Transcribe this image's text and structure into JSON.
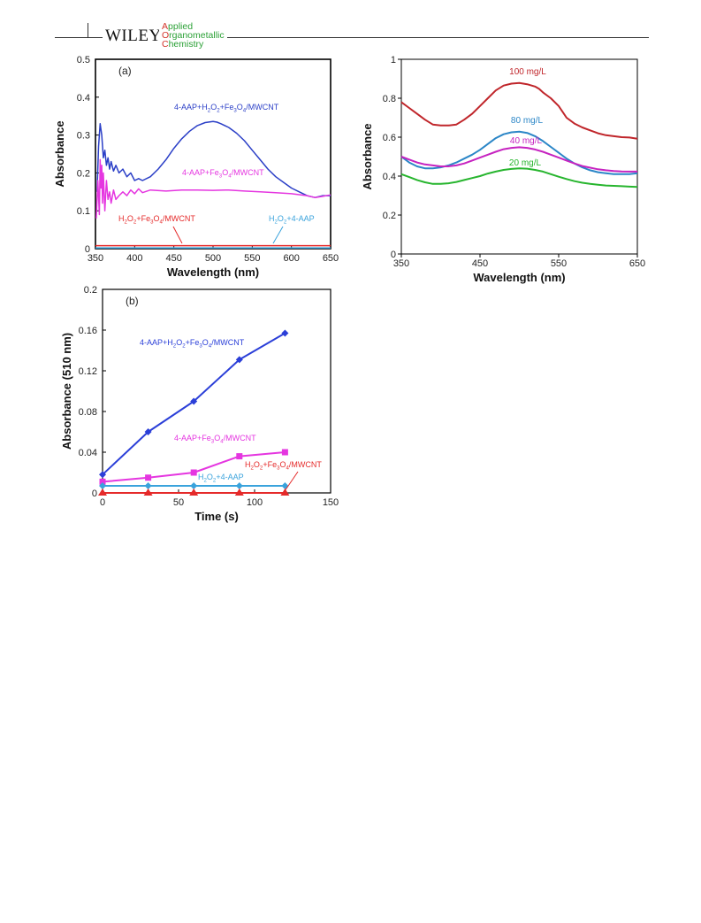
{
  "header": {
    "publisher": "WILEY",
    "journal_lines": [
      {
        "first": "A",
        "rest": "pplied"
      },
      {
        "first": "O",
        "rest": "rganometallic"
      },
      {
        "first": "C",
        "rest": "hemistry"
      }
    ],
    "colors": {
      "rule": "#333333",
      "journal_text": "#2aa035",
      "journal_initial": "#d3342a"
    }
  },
  "chart_data": [
    {
      "id": "a",
      "type": "line",
      "panel_label": "(a)",
      "xlabel": "Wavelength (nm)",
      "ylabel": "Absorbance",
      "xlim": [
        350,
        650
      ],
      "ylim": [
        0,
        0.5
      ],
      "xticks": [
        "350",
        "400",
        "450",
        "500",
        "550",
        "600",
        "650"
      ],
      "yticks": [
        "0",
        "0.1",
        "0.2",
        "0.3",
        "0.4",
        "0.5"
      ],
      "series": [
        {
          "name": "4-AAP+H2O2+Fe3O4/MWCNT",
          "color": "#2b3fc7",
          "x": [
            352,
            354,
            356,
            358,
            360,
            362,
            364,
            366,
            368,
            370,
            373,
            376,
            380,
            385,
            390,
            395,
            400,
            405,
            410,
            420,
            430,
            440,
            450,
            460,
            470,
            480,
            490,
            500,
            505,
            510,
            520,
            530,
            540,
            550,
            560,
            570,
            580,
            590,
            600,
            610,
            620,
            630,
            640,
            650
          ],
          "y": [
            0.15,
            0.27,
            0.33,
            0.3,
            0.24,
            0.26,
            0.22,
            0.24,
            0.21,
            0.23,
            0.205,
            0.22,
            0.2,
            0.21,
            0.19,
            0.2,
            0.18,
            0.185,
            0.18,
            0.19,
            0.21,
            0.235,
            0.265,
            0.29,
            0.31,
            0.325,
            0.333,
            0.336,
            0.334,
            0.33,
            0.32,
            0.305,
            0.285,
            0.26,
            0.235,
            0.21,
            0.19,
            0.175,
            0.16,
            0.15,
            0.14,
            0.135,
            0.14,
            0.14
          ]
        },
        {
          "name": "4-AAP+Fe3O4/MWCNT",
          "color": "#e536e0",
          "x": [
            351,
            353,
            355,
            356,
            357,
            358,
            359,
            360,
            362,
            364,
            366,
            368,
            370,
            373,
            376,
            380,
            385,
            390,
            395,
            400,
            405,
            410,
            420,
            440,
            460,
            480,
            500,
            520,
            540,
            560,
            580,
            600,
            620,
            630,
            640,
            650
          ],
          "y": [
            0.08,
            0.18,
            0.09,
            0.235,
            0.16,
            0.22,
            0.12,
            0.2,
            0.1,
            0.18,
            0.13,
            0.15,
            0.12,
            0.155,
            0.13,
            0.14,
            0.15,
            0.14,
            0.155,
            0.145,
            0.158,
            0.148,
            0.155,
            0.152,
            0.155,
            0.155,
            0.154,
            0.155,
            0.152,
            0.15,
            0.148,
            0.145,
            0.14,
            0.135,
            0.138,
            0.142
          ]
        },
        {
          "name": "H2O2+Fe3O4/MWCNT",
          "color": "#e52a2a",
          "x": [
            350,
            650
          ],
          "y": [
            0.008,
            0.008
          ]
        },
        {
          "name": "H2O2+4-AAP",
          "color": "#3aa3dc",
          "x": [
            350,
            650
          ],
          "y": [
            0.002,
            0.002
          ]
        }
      ],
      "annotations": [
        {
          "parts": [
            "4-AAP+H",
            "2",
            "O",
            "2",
            "+Fe",
            "3",
            "O",
            "4",
            "/MWCNT"
          ],
          "color": "#2b3fc7"
        },
        {
          "parts": [
            "4-AAP+Fe",
            "3",
            "O",
            "4",
            "/MWCNT"
          ],
          "color": "#e536e0"
        },
        {
          "parts": [
            "H",
            "2",
            "O",
            "2",
            "+Fe",
            "3",
            "O",
            "4",
            "/MWCNT"
          ],
          "color": "#e52a2a"
        },
        {
          "parts": [
            "H",
            "2",
            "O",
            "2",
            "+4-AAP"
          ],
          "color": "#3aa3dc"
        }
      ]
    },
    {
      "id": "right",
      "type": "line",
      "xlabel": "Wavelength (nm)",
      "ylabel": "Absorbance",
      "xlim": [
        350,
        650
      ],
      "ylim": [
        0,
        1
      ],
      "xticks": [
        "350",
        "450",
        "550",
        "650"
      ],
      "yticks": [
        "0",
        "0.2",
        "0.4",
        "0.6",
        "0.8",
        "1"
      ],
      "series": [
        {
          "name": "100 mg/L",
          "color": "#c0262b",
          "x": [
            350,
            360,
            370,
            380,
            390,
            400,
            410,
            420,
            430,
            440,
            450,
            460,
            470,
            480,
            490,
            500,
            510,
            520,
            525,
            530,
            540,
            550,
            560,
            570,
            580,
            590,
            600,
            610,
            620,
            630,
            640,
            650
          ],
          "y": [
            0.78,
            0.75,
            0.72,
            0.69,
            0.665,
            0.66,
            0.66,
            0.665,
            0.69,
            0.72,
            0.76,
            0.8,
            0.84,
            0.865,
            0.875,
            0.878,
            0.872,
            0.86,
            0.848,
            0.83,
            0.8,
            0.76,
            0.7,
            0.67,
            0.65,
            0.635,
            0.62,
            0.61,
            0.605,
            0.6,
            0.598,
            0.592
          ]
        },
        {
          "name": "80 mg/L",
          "color": "#2b86c7",
          "x": [
            350,
            360,
            370,
            380,
            390,
            400,
            410,
            420,
            430,
            440,
            450,
            460,
            470,
            480,
            490,
            500,
            510,
            520,
            530,
            540,
            550,
            560,
            570,
            580,
            590,
            600,
            610,
            620,
            630,
            640,
            650
          ],
          "y": [
            0.5,
            0.47,
            0.45,
            0.44,
            0.44,
            0.445,
            0.455,
            0.47,
            0.49,
            0.51,
            0.535,
            0.565,
            0.595,
            0.615,
            0.625,
            0.628,
            0.622,
            0.605,
            0.58,
            0.55,
            0.52,
            0.49,
            0.465,
            0.445,
            0.43,
            0.42,
            0.415,
            0.41,
            0.41,
            0.41,
            0.415
          ]
        },
        {
          "name": "40 mg/L",
          "color": "#c623c0",
          "x": [
            350,
            360,
            370,
            380,
            390,
            400,
            410,
            420,
            430,
            440,
            450,
            460,
            470,
            480,
            490,
            500,
            510,
            520,
            530,
            540,
            550,
            560,
            570,
            580,
            590,
            600,
            610,
            620,
            630,
            640,
            650
          ],
          "y": [
            0.5,
            0.485,
            0.47,
            0.46,
            0.455,
            0.45,
            0.45,
            0.455,
            0.465,
            0.48,
            0.495,
            0.51,
            0.525,
            0.538,
            0.545,
            0.548,
            0.545,
            0.537,
            0.525,
            0.51,
            0.495,
            0.48,
            0.465,
            0.452,
            0.443,
            0.435,
            0.43,
            0.426,
            0.424,
            0.423,
            0.423
          ]
        },
        {
          "name": "20 mg/L",
          "color": "#27b52e",
          "x": [
            350,
            360,
            370,
            380,
            390,
            400,
            410,
            420,
            430,
            440,
            450,
            460,
            470,
            480,
            490,
            500,
            510,
            520,
            530,
            540,
            550,
            560,
            570,
            580,
            590,
            600,
            610,
            620,
            630,
            640,
            650
          ],
          "y": [
            0.41,
            0.395,
            0.38,
            0.368,
            0.36,
            0.36,
            0.363,
            0.37,
            0.38,
            0.39,
            0.4,
            0.413,
            0.423,
            0.432,
            0.437,
            0.44,
            0.438,
            0.432,
            0.423,
            0.41,
            0.397,
            0.385,
            0.374,
            0.366,
            0.36,
            0.356,
            0.352,
            0.35,
            0.348,
            0.346,
            0.344
          ]
        }
      ]
    },
    {
      "id": "b",
      "type": "line",
      "panel_label": "(b)",
      "xlabel": "Time (s)",
      "ylabel": "Absorbance (510 nm)",
      "xlim": [
        0,
        150
      ],
      "ylim": [
        0,
        0.2
      ],
      "xticks": [
        "0",
        "50",
        "100",
        "150"
      ],
      "yticks": [
        "0",
        "0.04",
        "0.08",
        "0.12",
        "0.16",
        "0.2"
      ],
      "series": [
        {
          "name": "4-AAP+H2O2+Fe3O4/MWCNT",
          "color": "#2b3fd8",
          "marker": "diamond",
          "x": [
            0,
            30,
            60,
            90,
            120
          ],
          "y": [
            0.018,
            0.06,
            0.09,
            0.131,
            0.157
          ]
        },
        {
          "name": "4-AAP+Fe3O4/MWCNT",
          "color": "#e536e0",
          "marker": "square",
          "x": [
            0,
            30,
            60,
            90,
            120
          ],
          "y": [
            0.011,
            0.015,
            0.02,
            0.036,
            0.04
          ]
        },
        {
          "name": "H2O2+4-AAP",
          "color": "#3aa3dc",
          "marker": "diamond",
          "x": [
            0,
            30,
            60,
            90,
            120
          ],
          "y": [
            0.007,
            0.007,
            0.007,
            0.007,
            0.007
          ]
        },
        {
          "name": "H2O2+Fe3O4/MWCNT",
          "color": "#e52a2a",
          "marker": "triangle",
          "x": [
            0,
            30,
            60,
            90,
            120
          ],
          "y": [
            0.0,
            0.0,
            0.0,
            0.0,
            0.0
          ]
        }
      ],
      "annotations": [
        {
          "parts": [
            "4-AAP+H",
            "2",
            "O",
            "2",
            "+Fe",
            "3",
            "O",
            "4",
            "/MWCNT"
          ],
          "color": "#2b3fd8"
        },
        {
          "parts": [
            "4-AAP+Fe",
            "3",
            "O",
            "4",
            "/MWCNT"
          ],
          "color": "#e536e0"
        },
        {
          "parts": [
            "H",
            "2",
            "O",
            "2",
            "+Fe",
            "3",
            "O",
            "4",
            "/MWCNT"
          ],
          "color": "#e52a2a"
        },
        {
          "parts": [
            "H",
            "2",
            "O",
            "2",
            "+4-AAP"
          ],
          "color": "#3aa3dc"
        }
      ]
    }
  ]
}
